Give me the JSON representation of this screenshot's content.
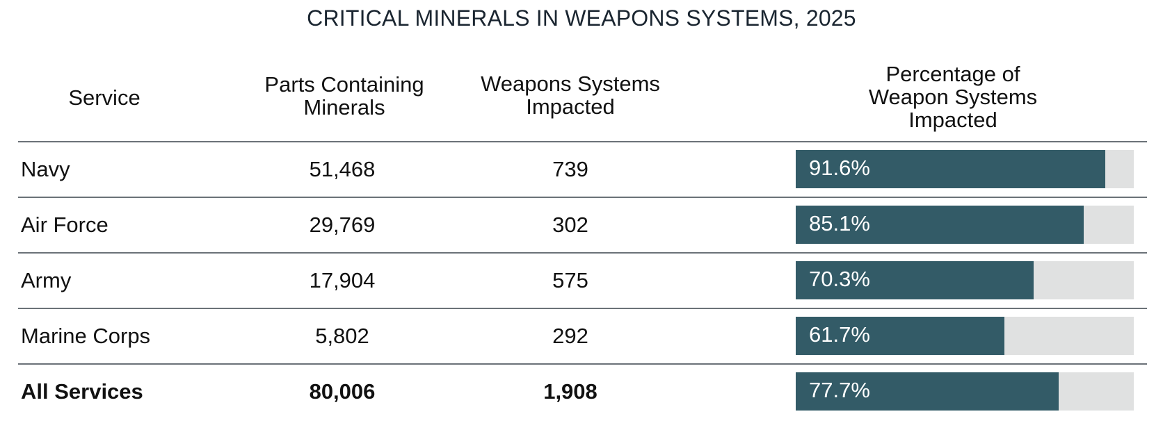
{
  "chart_data": {
    "type": "table",
    "title": "CRITICAL MINERALS IN WEAPONS SYSTEMS, 2025",
    "columns": [
      "Service",
      "Parts Containing Minerals",
      "Weapons Systems Impacted",
      "Percentage of Weapon Systems Impacted"
    ],
    "rows": [
      {
        "service": "Navy",
        "parts": "51,468",
        "weapons": "739",
        "pct_label": "91.6%",
        "pct": 91.6
      },
      {
        "service": "Air Force",
        "parts": "29,769",
        "weapons": "302",
        "pct_label": "85.1%",
        "pct": 85.1
      },
      {
        "service": "Army",
        "parts": "17,904",
        "weapons": "575",
        "pct_label": "70.3%",
        "pct": 70.3
      },
      {
        "service": "Marine Corps",
        "parts": "5,802",
        "weapons": "292",
        "pct_label": "61.7%",
        "pct": 61.7
      }
    ],
    "total": {
      "service": "All Services",
      "parts": "80,006",
      "weapons": "1,908",
      "pct_label": "77.7%",
      "pct": 77.7
    },
    "bar_range": [
      0,
      100
    ]
  },
  "colors": {
    "bar_fill": "#335b67",
    "bar_track": "#e0e1e1",
    "rule": "#6b7278"
  }
}
